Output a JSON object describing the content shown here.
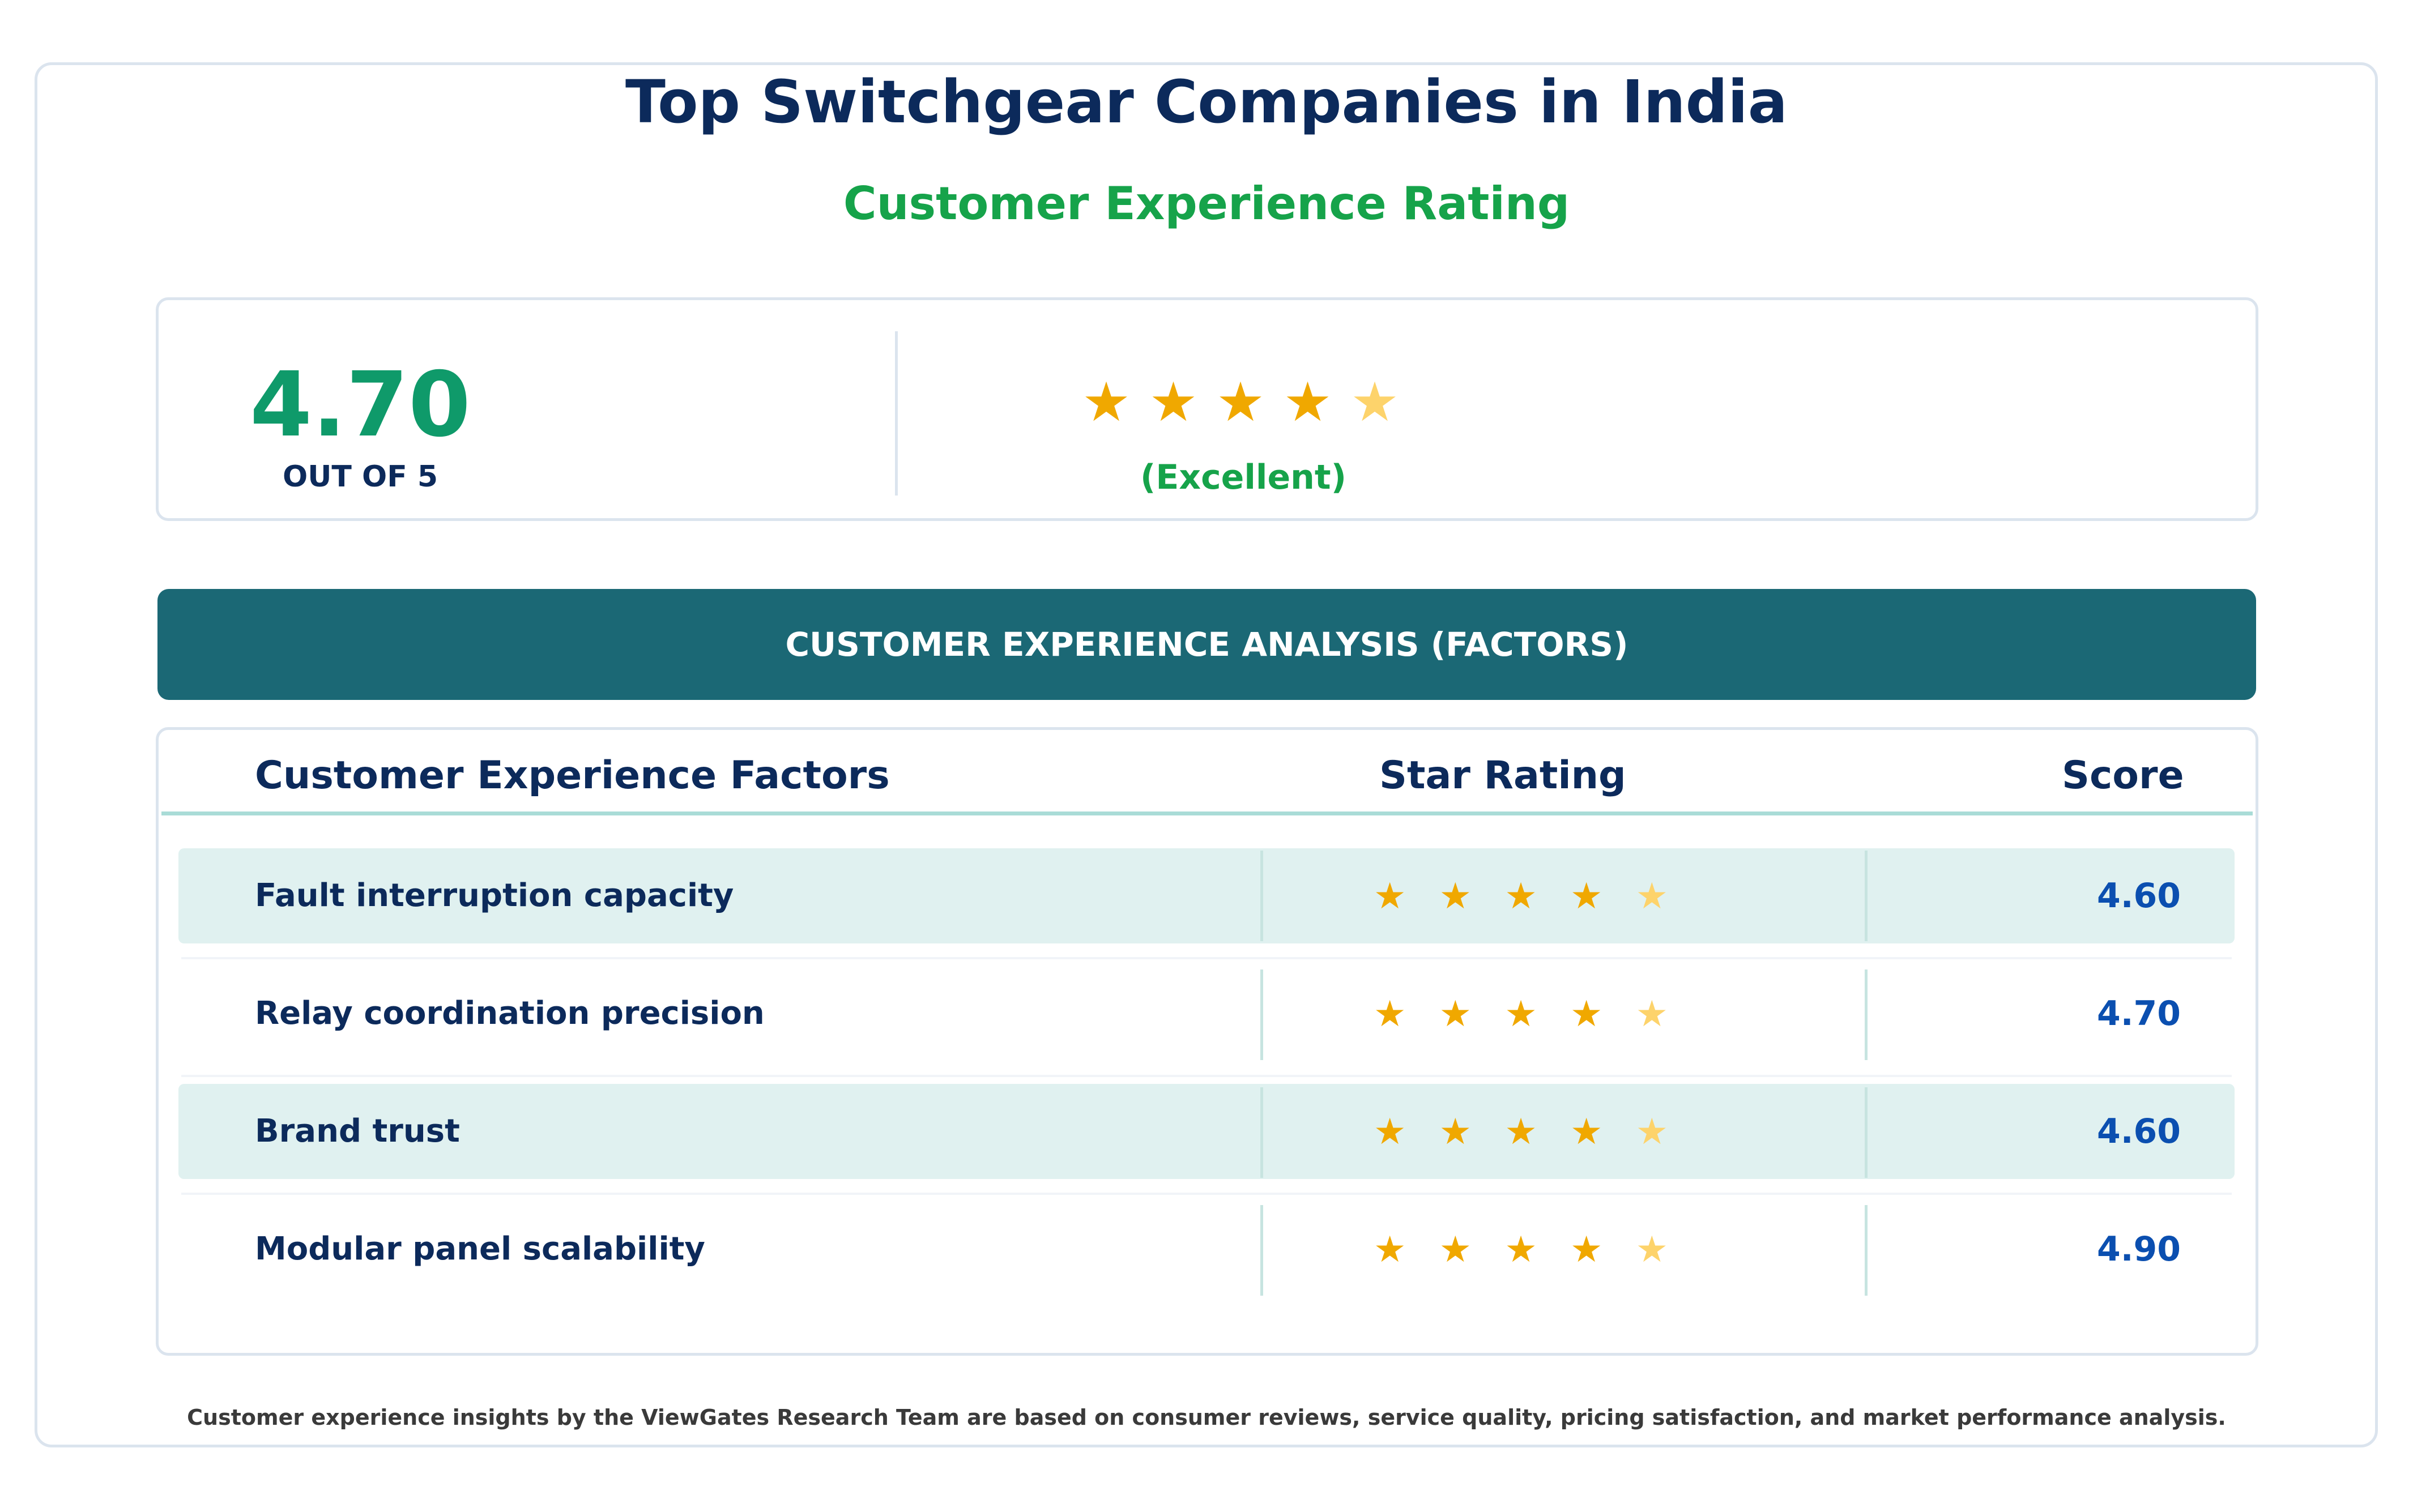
{
  "header": {
    "title": "Top Switchgear Companies in India",
    "subtitle": "Customer Experience Rating"
  },
  "summary": {
    "score": "4.70",
    "out_of": "OUT OF 5",
    "rating_value": 4.7,
    "rating_max": 5,
    "label": "(Excellent)"
  },
  "section": {
    "banner": "CUSTOMER EXPERIENCE ANALYSIS (FACTORS)"
  },
  "table": {
    "columns": [
      "Customer Experience Factors",
      "Star Rating",
      "Score"
    ],
    "rows": [
      {
        "factor": "Fault interruption capacity",
        "stars_full": 4,
        "stars_half": 1,
        "score": "4.60"
      },
      {
        "factor": "Relay coordination precision",
        "stars_full": 4,
        "stars_half": 1,
        "score": "4.70"
      },
      {
        "factor": "Brand trust",
        "stars_full": 4,
        "stars_half": 1,
        "score": "4.60"
      },
      {
        "factor": "Modular panel scalability",
        "stars_full": 4,
        "stars_half": 1,
        "score": "4.90"
      }
    ]
  },
  "footer": {
    "note": "Customer experience insights by the ViewGates Research Team are based on consumer reviews, service quality, pricing satisfaction, and market performance analysis."
  },
  "colors": {
    "navy": "#0c2a5b",
    "green": "#16a34a",
    "score_green": "#0f9a6a",
    "banner_teal": "#1b6875",
    "star_gold": "#f0a800",
    "star_light": "#fdd36b",
    "score_blue": "#0b4fb0",
    "row_shade": "#e0f1f0"
  },
  "icons": {
    "star": "star-icon",
    "half_star": "star-half-icon"
  }
}
